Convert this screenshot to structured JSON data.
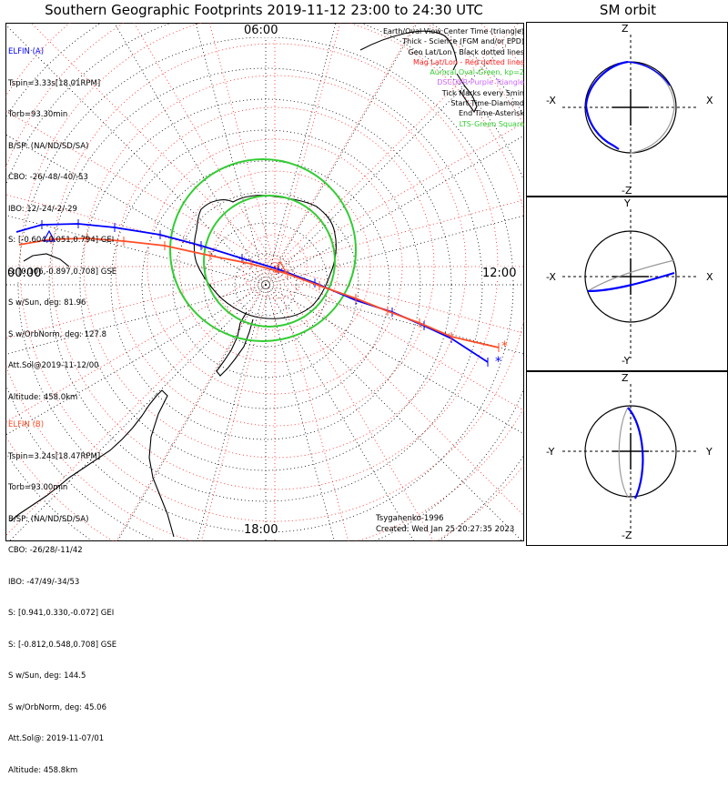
{
  "title": "Southern Geographic Footprints 2019-11-12 23:00 to 24:30 UTC",
  "sm_title": "SM orbit",
  "colors": {
    "elfin_a": "#0000ff",
    "elfin_b": "#ff4c26",
    "auroral_oval": "#33cc33",
    "dscovr": "#cc66ff",
    "geo_grid": "#000000",
    "mag_grid": "#ff2020"
  },
  "clock_labels": {
    "top": "06:00",
    "left": "00:00",
    "right": "12:00",
    "bottom": "18:00"
  },
  "elfin_a": {
    "header": "ELFIN (A)",
    "lines": [
      "Tspin=3.33s[18.01RPM]",
      "Torb=93.30min",
      "B/SP: (NA/ND/SD/SA)",
      "CBO: -26/-48/-40/-53",
      "IBO: 12/-24/-2/-29",
      "S: [-0.604,0.051,0.794] GEI",
      "S: [0.106,-0.897,0.708] GSE",
      "S w/Sun, deg: 81.96",
      "S w/OrbNorm, deg: 127.8",
      "Att.Sol@2019-11-12/00",
      "Altitude: 458.0km"
    ]
  },
  "elfin_b": {
    "header": "ELFIN (B)",
    "lines": [
      "Tspin=3.24s[18.47RPM]",
      "Torb=93.00min",
      "B/SP: (NA/ND/SD/SA)",
      "CBO: -26/28/-11/42",
      "IBO: -47/49/-34/53",
      "S: [0.941,0.330,-0.072] GEI",
      "S: [-0.812,0.548,0.708] GSE",
      "S w/Sun, deg: 144.5",
      "S w/OrbNorm, deg: 45.06",
      "Att.Sol@: 2019-11-07/01",
      "Altitude: 458.8km"
    ]
  },
  "legend": [
    {
      "text": "Earth/Oval View Center Time (triangle)",
      "color": "#000000"
    },
    {
      "text": "Thick - Science (FGM and/or EPD)",
      "color": "#000000"
    },
    {
      "text": "Geo Lat/Lon - Black dotted lines",
      "color": "#000000"
    },
    {
      "text": "Mag Lat/Lon - Red dotted lines",
      "color": "#ff2020"
    },
    {
      "text": "Auroral Oval-Green, kp=2",
      "color": "#33cc33"
    },
    {
      "text": "DSCOVR-Purple Triangle",
      "color": "#cc66ff"
    },
    {
      "text": "Tick Marks every 5min",
      "color": "#000000"
    },
    {
      "text": "Start Time-Diamond",
      "color": "#000000"
    },
    {
      "text": "End Time-Asterisk",
      "color": "#000000"
    },
    {
      "text": "LTS-Green Square",
      "color": "#33cc33"
    }
  ],
  "footer": {
    "author": "Tsyganenko-1996",
    "created": "Created: Wed Jan 25 20:27:35 2023"
  },
  "sm_panels": [
    {
      "top_label": "Z",
      "bottom_label": "-Z",
      "left_label": "-X",
      "right_label": "X"
    },
    {
      "top_label": "Y",
      "bottom_label": "-Y",
      "left_label": "-X",
      "right_label": "X"
    },
    {
      "top_label": "Z",
      "bottom_label": "-Z",
      "left_label": "-Y",
      "right_label": "Y"
    }
  ]
}
